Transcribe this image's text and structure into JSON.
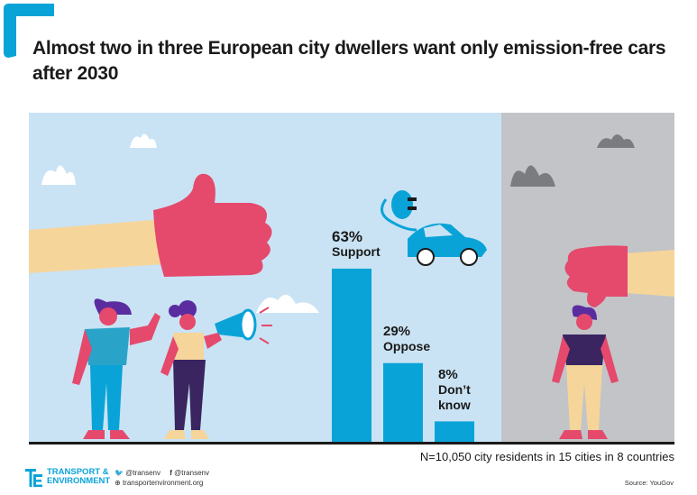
{
  "title": "Almost two in three European city dwellers want only emission-free cars after 2030",
  "note": "N=10,050 city residents in 15 cities in 8 countries",
  "source": "Source: YouGov",
  "brand": {
    "line1": "TRANSPORT &",
    "line2": "ENVIRONMENT"
  },
  "social": {
    "twitter": "@transenv",
    "facebook": "@transenv",
    "web": "transportenvironment.org"
  },
  "colors": {
    "bar": "#0aa3d8",
    "panel_blue": "#c9e3f4",
    "panel_grey": "#c2c4c8",
    "accent_pink": "#e5496c"
  },
  "chart_data": {
    "type": "bar",
    "categories": [
      "Support",
      "Oppose",
      "Don't know"
    ],
    "labels": [
      "Support",
      "Oppose",
      "Don’t know"
    ],
    "values": [
      63,
      29,
      8
    ],
    "value_labels": [
      "63%",
      "29%",
      "8%"
    ],
    "ylim": [
      0,
      100
    ]
  }
}
